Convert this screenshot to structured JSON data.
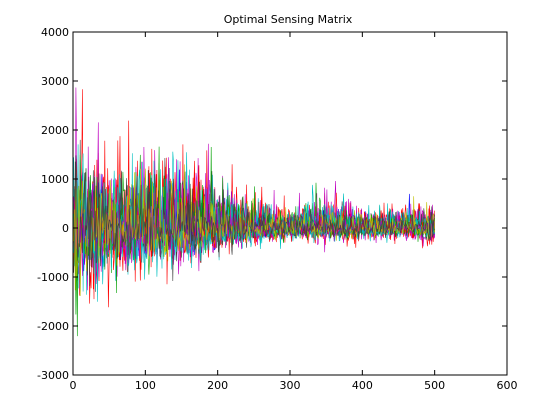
{
  "chart_data": {
    "type": "line",
    "title": "Optimal Sensing Matrix",
    "xlabel": "",
    "ylabel": "",
    "xlim": [
      0,
      600
    ],
    "ylim": [
      -3000,
      4000
    ],
    "xticks": [
      0,
      100,
      200,
      300,
      400,
      500,
      600
    ],
    "yticks": [
      -3000,
      -2000,
      -1000,
      0,
      1000,
      2000,
      3000,
      4000
    ],
    "grid": false,
    "legend": "none",
    "n_points": 500,
    "series_colors": [
      "#0000ff",
      "#00a000",
      "#ff0000",
      "#00c0c0",
      "#c000c0",
      "#c0c000",
      "#404040"
    ],
    "envelope": {
      "x": [
        1,
        10,
        50,
        100,
        150,
        200,
        250,
        300,
        350,
        400,
        450,
        500
      ],
      "max": [
        3100,
        2900,
        2000,
        2400,
        2350,
        1500,
        1000,
        600,
        1050,
        700,
        650,
        800
      ],
      "min": [
        -2400,
        -2300,
        -1600,
        -1300,
        -1250,
        -800,
        -500,
        -400,
        -500,
        -380,
        -350,
        -500
      ]
    }
  }
}
